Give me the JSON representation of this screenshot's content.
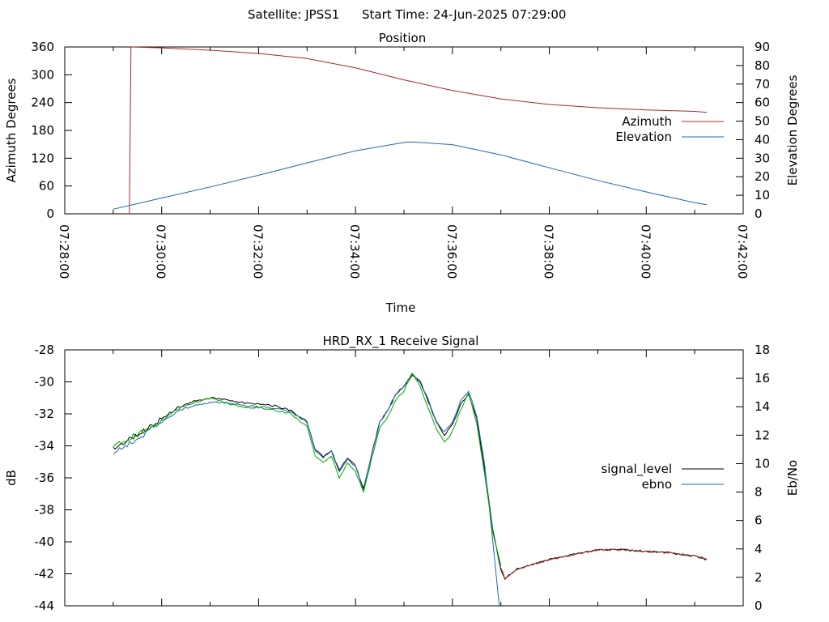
{
  "header": {
    "satellite": "Satellite: JPSS1",
    "start_time": "Start Time: 24-Jun-2025 07:29:00"
  },
  "chart_data": [
    {
      "type": "line",
      "title": "Position",
      "xlabel": "Time",
      "ylabel": "Azimuth Degrees",
      "y2label": "Elevation Degrees",
      "xlim": [
        "07:28:00",
        "07:42:00"
      ],
      "x_ticks": [
        "07:28:00",
        "07:30:00",
        "07:32:00",
        "07:34:00",
        "07:36:00",
        "07:38:00",
        "07:40:00",
        "07:42:00"
      ],
      "ylim": [
        0,
        360
      ],
      "y_ticks": [
        0,
        60,
        120,
        180,
        240,
        300,
        360
      ],
      "y2lim": [
        0,
        90
      ],
      "y2_ticks": [
        0,
        10,
        20,
        30,
        40,
        50,
        60,
        70,
        80,
        90
      ],
      "legend_position": "right",
      "grid": false,
      "series": [
        {
          "name": "Azimuth",
          "axis": "y",
          "color": "#a52a2a",
          "points": [
            [
              "07:29:20",
              0
            ],
            [
              "07:29:21",
              180
            ],
            [
              "07:29:22",
              360
            ],
            [
              "07:30:00",
              358
            ],
            [
              "07:31:00",
              353
            ],
            [
              "07:32:00",
              346
            ],
            [
              "07:33:00",
              335
            ],
            [
              "07:34:00",
              315
            ],
            [
              "07:35:00",
              289
            ],
            [
              "07:36:00",
              266
            ],
            [
              "07:37:00",
              248
            ],
            [
              "07:38:00",
              236
            ],
            [
              "07:39:00",
              229
            ],
            [
              "07:40:00",
              224
            ],
            [
              "07:41:00",
              221
            ],
            [
              "07:41:15",
              219
            ]
          ]
        },
        {
          "name": "Elevation",
          "axis": "y2",
          "color": "#2266aa",
          "points": [
            [
              "07:29:00",
              2.5
            ],
            [
              "07:30:00",
              8.5
            ],
            [
              "07:31:00",
              14.5
            ],
            [
              "07:32:00",
              20.8
            ],
            [
              "07:33:00",
              27.5
            ],
            [
              "07:34:00",
              34.0
            ],
            [
              "07:35:00",
              38.5
            ],
            [
              "07:35:10",
              38.8
            ],
            [
              "07:36:00",
              37.3
            ],
            [
              "07:37:00",
              31.8
            ],
            [
              "07:38:00",
              24.8
            ],
            [
              "07:39:00",
              18.0
            ],
            [
              "07:40:00",
              11.8
            ],
            [
              "07:41:00",
              6.0
            ],
            [
              "07:41:15",
              4.9
            ]
          ]
        }
      ]
    },
    {
      "type": "line",
      "title": "HRD_RX_1 Receive Signal",
      "ylabel": "dB",
      "y2label": "Eb/No",
      "ylim": [
        -44,
        -28
      ],
      "y_ticks": [
        -44,
        -42,
        -40,
        -38,
        -36,
        -34,
        -32,
        -30,
        -28
      ],
      "y2lim": [
        0,
        18
      ],
      "y2_ticks": [
        0,
        2,
        4,
        6,
        8,
        10,
        12,
        14,
        16,
        18
      ],
      "legend_position": "right",
      "grid": false,
      "series": [
        {
          "name": "signal_level",
          "axis": "y",
          "color": "#000000",
          "points": [
            [
              "07:29:00",
              -34.2
            ],
            [
              "07:29:20",
              -33.6
            ],
            [
              "07:29:40",
              -33.0
            ],
            [
              "07:30:00",
              -32.3
            ],
            [
              "07:30:20",
              -31.6
            ],
            [
              "07:30:40",
              -31.2
            ],
            [
              "07:31:00",
              -31.0
            ],
            [
              "07:31:20",
              -31.1
            ],
            [
              "07:31:40",
              -31.3
            ],
            [
              "07:32:00",
              -31.4
            ],
            [
              "07:32:20",
              -31.5
            ],
            [
              "07:32:40",
              -31.8
            ],
            [
              "07:33:00",
              -32.5
            ],
            [
              "07:33:10",
              -34.2
            ],
            [
              "07:33:20",
              -34.7
            ],
            [
              "07:33:30",
              -34.3
            ],
            [
              "07:33:40",
              -35.5
            ],
            [
              "07:33:50",
              -34.8
            ],
            [
              "07:34:00",
              -35.2
            ],
            [
              "07:34:10",
              -36.7
            ],
            [
              "07:34:20",
              -34.5
            ],
            [
              "07:34:30",
              -32.5
            ],
            [
              "07:34:40",
              -31.8
            ],
            [
              "07:34:50",
              -30.8
            ],
            [
              "07:35:00",
              -30.3
            ],
            [
              "07:35:10",
              -29.6
            ],
            [
              "07:35:20",
              -30.0
            ],
            [
              "07:35:30",
              -31.2
            ],
            [
              "07:35:40",
              -32.5
            ],
            [
              "07:35:50",
              -33.3
            ],
            [
              "07:36:00",
              -32.7
            ],
            [
              "07:36:10",
              -31.4
            ],
            [
              "07:36:20",
              -30.8
            ],
            [
              "07:36:30",
              -32.3
            ],
            [
              "07:36:40",
              -35.5
            ],
            [
              "07:36:50",
              -39.2
            ],
            [
              "07:37:00",
              -41.8
            ],
            [
              "07:37:05",
              -42.3
            ],
            [
              "07:37:20",
              -41.7
            ],
            [
              "07:37:40",
              -41.4
            ],
            [
              "07:38:00",
              -41.1
            ],
            [
              "07:38:30",
              -40.8
            ],
            [
              "07:39:00",
              -40.5
            ],
            [
              "07:39:30",
              -40.5
            ],
            [
              "07:40:00",
              -40.6
            ],
            [
              "07:40:30",
              -40.7
            ],
            [
              "07:41:00",
              -40.9
            ],
            [
              "07:41:15",
              -41.1
            ]
          ]
        },
        {
          "name": "ebno",
          "axis": "y2",
          "color": "#2266aa",
          "points": [
            [
              "07:29:00",
              10.7
            ],
            [
              "07:29:20",
              11.4
            ],
            [
              "07:29:40",
              12.1
            ],
            [
              "07:30:00",
              12.9
            ],
            [
              "07:30:20",
              13.7
            ],
            [
              "07:30:40",
              14.1
            ],
            [
              "07:31:00",
              14.3
            ],
            [
              "07:31:20",
              14.3
            ],
            [
              "07:31:40",
              14.1
            ],
            [
              "07:32:00",
              14.0
            ],
            [
              "07:32:20",
              13.9
            ],
            [
              "07:32:40",
              13.6
            ],
            [
              "07:33:00",
              12.9
            ],
            [
              "07:33:10",
              10.9
            ],
            [
              "07:33:20",
              10.4
            ],
            [
              "07:33:30",
              10.9
            ],
            [
              "07:33:40",
              9.4
            ],
            [
              "07:33:50",
              10.3
            ],
            [
              "07:34:00",
              9.8
            ],
            [
              "07:34:10",
              8.1
            ],
            [
              "07:34:20",
              10.6
            ],
            [
              "07:34:30",
              12.9
            ],
            [
              "07:34:40",
              13.8
            ],
            [
              "07:34:50",
              14.9
            ],
            [
              "07:35:00",
              15.5
            ],
            [
              "07:35:10",
              16.3
            ],
            [
              "07:35:20",
              15.8
            ],
            [
              "07:35:30",
              14.5
            ],
            [
              "07:35:40",
              13.0
            ],
            [
              "07:35:50",
              12.2
            ],
            [
              "07:36:00",
              12.9
            ],
            [
              "07:36:10",
              14.4
            ],
            [
              "07:36:20",
              15.1
            ],
            [
              "07:36:30",
              13.4
            ],
            [
              "07:36:40",
              9.9
            ],
            [
              "07:36:50",
              4.5
            ],
            [
              "07:36:58",
              0
            ]
          ]
        },
        {
          "name": "",
          "axis": "y",
          "color": "#00aa00",
          "points": [
            [
              "07:29:00",
              -34.0
            ],
            [
              "07:29:20",
              -33.5
            ],
            [
              "07:29:40",
              -33.0
            ],
            [
              "07:30:00",
              -32.4
            ],
            [
              "07:30:20",
              -31.7
            ],
            [
              "07:30:40",
              -31.3
            ],
            [
              "07:31:00",
              -31.0
            ],
            [
              "07:31:20",
              -31.3
            ],
            [
              "07:31:40",
              -31.6
            ],
            [
              "07:32:00",
              -31.6
            ],
            [
              "07:32:20",
              -31.8
            ],
            [
              "07:32:40",
              -32.0
            ],
            [
              "07:33:00",
              -32.8
            ],
            [
              "07:33:10",
              -34.6
            ],
            [
              "07:33:20",
              -35.0
            ],
            [
              "07:33:30",
              -34.6
            ],
            [
              "07:33:40",
              -36.0
            ],
            [
              "07:33:50",
              -35.1
            ],
            [
              "07:34:00",
              -35.6
            ],
            [
              "07:34:10",
              -36.9
            ],
            [
              "07:34:20",
              -34.8
            ],
            [
              "07:34:30",
              -32.9
            ],
            [
              "07:34:40",
              -32.2
            ],
            [
              "07:34:50",
              -31.1
            ],
            [
              "07:35:00",
              -30.6
            ],
            [
              "07:35:10",
              -29.4
            ],
            [
              "07:35:20",
              -30.3
            ],
            [
              "07:35:30",
              -31.6
            ],
            [
              "07:35:40",
              -32.9
            ],
            [
              "07:35:50",
              -33.8
            ],
            [
              "07:36:00",
              -33.1
            ],
            [
              "07:36:10",
              -31.8
            ],
            [
              "07:36:20",
              -30.7
            ],
            [
              "07:36:30",
              -32.6
            ],
            [
              "07:36:40",
              -35.8
            ],
            [
              "07:36:50",
              -39.4
            ],
            [
              "07:37:00",
              -41.5
            ]
          ]
        },
        {
          "name": "",
          "axis": "y",
          "color": "#a52a2a",
          "points": [
            [
              "07:37:00",
              -41.6
            ],
            [
              "07:37:05",
              -42.3
            ],
            [
              "07:37:20",
              -41.7
            ],
            [
              "07:37:40",
              -41.4
            ],
            [
              "07:38:00",
              -41.1
            ],
            [
              "07:38:30",
              -40.8
            ],
            [
              "07:39:00",
              -40.5
            ],
            [
              "07:39:30",
              -40.5
            ],
            [
              "07:40:00",
              -40.6
            ],
            [
              "07:40:30",
              -40.7
            ],
            [
              "07:41:00",
              -40.9
            ],
            [
              "07:41:15",
              -41.1
            ]
          ]
        }
      ]
    }
  ]
}
